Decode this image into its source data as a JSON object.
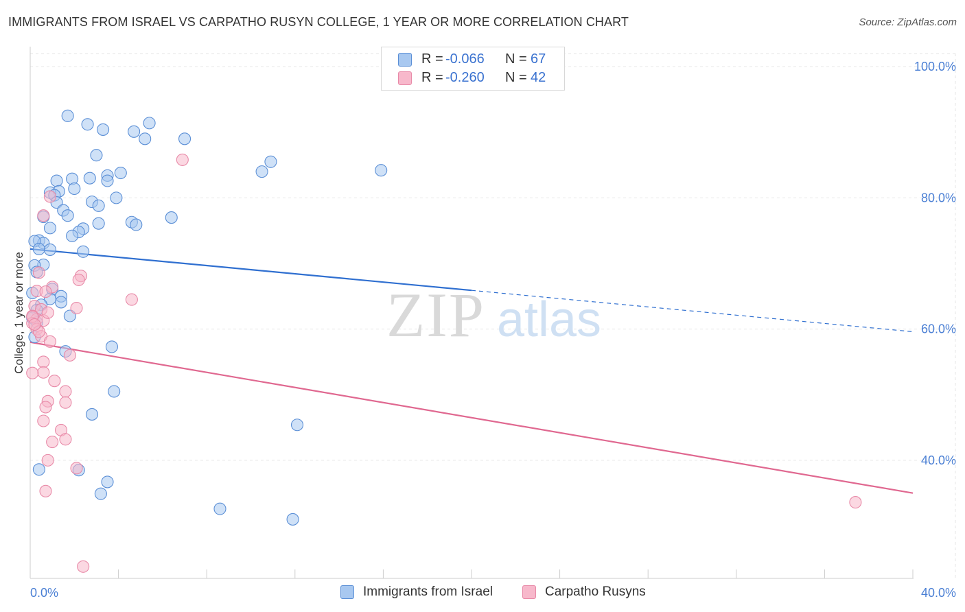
{
  "title": "IMMIGRANTS FROM ISRAEL VS CARPATHO RUSYN COLLEGE, 1 YEAR OR MORE CORRELATION CHART",
  "source": "Source: ZipAtlas.com",
  "watermark": {
    "zip": "ZIP",
    "atlas": "atlas"
  },
  "legend": [
    {
      "r_label": "R =",
      "r_value": "-0.066",
      "n_label": "N =",
      "n_value": "67",
      "color": "#a8c8f0"
    },
    {
      "r_label": "R =",
      "r_value": "-0.260",
      "n_label": "N =",
      "n_value": "42",
      "color": "#f7b8cb"
    }
  ],
  "series_names": {
    "israel": "Immigrants from Israel",
    "rusyn": "Carpatho Rusyns"
  },
  "colors": {
    "israel_fill": "#a8c8f0",
    "israel_stroke": "#5b8fd6",
    "israel_line": "#2f6fd0",
    "rusyn_fill": "#f7b8cb",
    "rusyn_stroke": "#e88aa8",
    "rusyn_line": "#e06890",
    "tick_text": "#4a7fd4",
    "grid": "#e6e6e6"
  },
  "chart_data": {
    "type": "scatter",
    "xlabel": "",
    "ylabel": "College, 1 year or more",
    "xlim": [
      0,
      40
    ],
    "ylim": [
      20,
      104
    ],
    "x_tick_labels": [
      {
        "value": 0,
        "label": "0.0%"
      },
      {
        "value": 40,
        "label": "40.0%"
      }
    ],
    "y_tick_labels": [
      {
        "value": 100,
        "label": "100.0%"
      },
      {
        "value": 80,
        "label": "80.0%"
      },
      {
        "value": 60,
        "label": "60.0%"
      },
      {
        "value": 40,
        "label": "40.0%"
      }
    ],
    "series": [
      {
        "name": "Immigrants from Israel",
        "points": [
          [
            1.7,
            92.5
          ],
          [
            2.6,
            91.2
          ],
          [
            3.3,
            90.4
          ],
          [
            4.7,
            90.1
          ],
          [
            5.4,
            91.4
          ],
          [
            5.2,
            89.0
          ],
          [
            7.0,
            89.0
          ],
          [
            3.0,
            86.5
          ],
          [
            10.9,
            85.5
          ],
          [
            10.5,
            84.0
          ],
          [
            15.9,
            84.2
          ],
          [
            4.1,
            83.8
          ],
          [
            3.5,
            83.4
          ],
          [
            2.7,
            83.0
          ],
          [
            1.2,
            82.6
          ],
          [
            1.9,
            82.9
          ],
          [
            3.5,
            82.6
          ],
          [
            2.0,
            81.4
          ],
          [
            1.3,
            81.0
          ],
          [
            0.9,
            80.8
          ],
          [
            1.1,
            80.4
          ],
          [
            3.9,
            80.0
          ],
          [
            2.8,
            79.4
          ],
          [
            3.1,
            78.8
          ],
          [
            1.2,
            79.3
          ],
          [
            1.5,
            78.1
          ],
          [
            0.6,
            77.1
          ],
          [
            1.7,
            77.3
          ],
          [
            6.4,
            77.0
          ],
          [
            4.6,
            76.3
          ],
          [
            3.1,
            76.1
          ],
          [
            2.4,
            75.3
          ],
          [
            4.8,
            75.9
          ],
          [
            0.9,
            75.4
          ],
          [
            2.2,
            74.8
          ],
          [
            1.9,
            74.2
          ],
          [
            0.4,
            73.5
          ],
          [
            0.6,
            73.1
          ],
          [
            0.2,
            73.4
          ],
          [
            0.4,
            72.2
          ],
          [
            0.9,
            72.1
          ],
          [
            2.4,
            71.8
          ],
          [
            0.6,
            69.8
          ],
          [
            0.2,
            69.7
          ],
          [
            0.3,
            68.7
          ],
          [
            1.0,
            66.1
          ],
          [
            0.1,
            65.5
          ],
          [
            1.4,
            65.0
          ],
          [
            0.9,
            64.6
          ],
          [
            1.4,
            64.1
          ],
          [
            0.5,
            63.7
          ],
          [
            0.3,
            62.9
          ],
          [
            1.8,
            62.0
          ],
          [
            0.1,
            61.7
          ],
          [
            0.2,
            58.8
          ],
          [
            1.6,
            56.6
          ],
          [
            3.7,
            57.3
          ],
          [
            3.8,
            50.5
          ],
          [
            2.8,
            47.0
          ],
          [
            12.1,
            45.4
          ],
          [
            0.4,
            38.6
          ],
          [
            2.2,
            38.5
          ],
          [
            3.5,
            36.7
          ],
          [
            3.2,
            34.9
          ],
          [
            8.6,
            32.6
          ],
          [
            11.9,
            31.0
          ],
          [
            0.3,
            61.0
          ]
        ]
      },
      {
        "name": "Carpatho Rusyns",
        "points": [
          [
            6.9,
            85.8
          ],
          [
            0.9,
            80.2
          ],
          [
            0.6,
            77.3
          ],
          [
            0.4,
            68.6
          ],
          [
            2.3,
            68.1
          ],
          [
            2.2,
            67.5
          ],
          [
            1.0,
            66.4
          ],
          [
            0.3,
            65.8
          ],
          [
            0.7,
            65.7
          ],
          [
            4.6,
            64.5
          ],
          [
            0.2,
            63.5
          ],
          [
            2.1,
            63.2
          ],
          [
            0.5,
            63.0
          ],
          [
            0.1,
            62.0
          ],
          [
            0.3,
            61.5
          ],
          [
            0.6,
            61.3
          ],
          [
            0.1,
            60.9
          ],
          [
            0.3,
            60.0
          ],
          [
            0.5,
            58.9
          ],
          [
            0.9,
            58.1
          ],
          [
            1.8,
            56.0
          ],
          [
            0.6,
            55.0
          ],
          [
            0.6,
            53.4
          ],
          [
            0.1,
            53.3
          ],
          [
            1.1,
            52.1
          ],
          [
            1.6,
            50.5
          ],
          [
            0.8,
            49.0
          ],
          [
            1.6,
            48.8
          ],
          [
            0.7,
            48.1
          ],
          [
            0.6,
            46.0
          ],
          [
            1.4,
            44.6
          ],
          [
            1.6,
            43.2
          ],
          [
            1.0,
            42.8
          ],
          [
            0.8,
            40.0
          ],
          [
            2.1,
            38.8
          ],
          [
            0.7,
            35.3
          ],
          [
            37.4,
            33.6
          ],
          [
            2.4,
            23.8
          ],
          [
            0.1,
            61.9
          ],
          [
            0.4,
            59.6
          ],
          [
            0.2,
            60.7
          ],
          [
            0.8,
            62.5
          ]
        ]
      }
    ],
    "trend_lines": [
      {
        "series": "Immigrants from Israel",
        "solid": [
          [
            0,
            72.2
          ],
          [
            20,
            65.9
          ]
        ],
        "dashed": [
          [
            20,
            65.9
          ],
          [
            40,
            59.6
          ]
        ]
      },
      {
        "series": "Carpatho Rusyns",
        "solid": [
          [
            0,
            58.0
          ],
          [
            40,
            35.0
          ]
        ]
      }
    ]
  }
}
